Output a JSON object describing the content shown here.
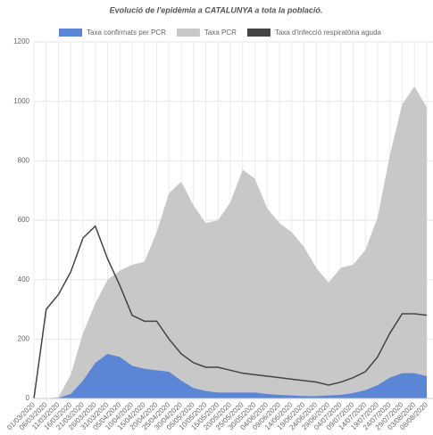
{
  "chart_data": {
    "type": "area",
    "title": "Evolució de l'epidèmia a CATALUNYA a tota la població.",
    "categories": [
      "01/03/2020",
      "06/03/2020",
      "11/03/2020",
      "16/03/2020",
      "21/03/2020",
      "26/03/2020",
      "31/03/2020",
      "05/04/2020",
      "10/04/2020",
      "15/04/2020",
      "20/04/2020",
      "25/04/2020",
      "30/04/2020",
      "05/05/2020",
      "10/05/2020",
      "15/05/2020",
      "20/05/2020",
      "25/05/2020",
      "30/05/2020",
      "04/06/2020",
      "09/06/2020",
      "14/06/2020",
      "19/06/2020",
      "24/06/2020",
      "29/06/2020",
      "04/07/2020",
      "09/07/2020",
      "14/07/2020",
      "19/07/2020",
      "24/07/2020",
      "29/07/2020",
      "03/08/2020",
      "08/08/2020"
    ],
    "series": [
      {
        "name": "Taxa confirmats per PCR",
        "color": "#5b86d6",
        "kind": "area",
        "values": [
          0,
          0,
          2,
          15,
          60,
          120,
          150,
          140,
          110,
          100,
          95,
          90,
          60,
          35,
          25,
          20,
          20,
          20,
          20,
          15,
          12,
          10,
          8,
          8,
          10,
          12,
          18,
          28,
          45,
          70,
          85,
          85,
          75
        ]
      },
      {
        "name": "Taxa PCR",
        "color": "#c8c8c8",
        "kind": "area",
        "values": [
          0,
          0,
          5,
          80,
          220,
          320,
          400,
          430,
          450,
          460,
          560,
          690,
          730,
          650,
          590,
          600,
          660,
          770,
          740,
          640,
          590,
          560,
          510,
          440,
          390,
          440,
          450,
          500,
          610,
          820,
          990,
          1050,
          980
        ]
      },
      {
        "name": "Taxa d'infecció respiratòria aguda",
        "color": "#444444",
        "kind": "line",
        "values": [
          0,
          300,
          350,
          426,
          540,
          580,
          470,
          380,
          280,
          260,
          260,
          200,
          150,
          120,
          105,
          105,
          95,
          85,
          80,
          75,
          70,
          65,
          60,
          55,
          45,
          55,
          70,
          90,
          140,
          220,
          285,
          285,
          280
        ]
      }
    ],
    "ylim": [
      0,
      1200
    ],
    "yticks": [
      0,
      200,
      400,
      600,
      800,
      1000,
      1200
    ],
    "grid": true
  }
}
